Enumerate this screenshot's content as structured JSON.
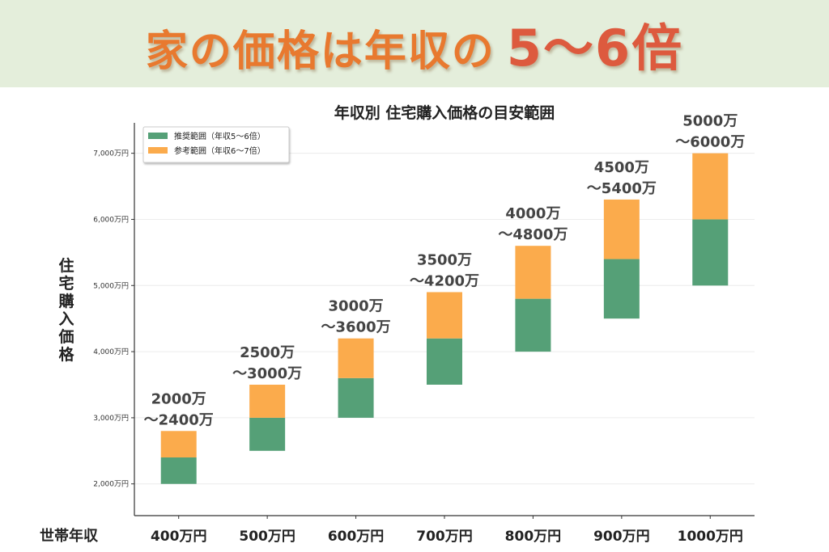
{
  "banner": {
    "text": "家の価格は年収の",
    "highlight": "5〜6倍"
  },
  "chart_data": {
    "type": "bar",
    "subtype": "floating-stacked",
    "title": "年収別 住宅購入価格の目安範囲",
    "xlabel": "世帯年収",
    "ylabel": "住宅購入価格",
    "categories": [
      "400万円",
      "500万円",
      "600万円",
      "700万円",
      "800万円",
      "900万円",
      "1000万円"
    ],
    "series": [
      {
        "name": "推奨範囲（年収5〜6倍）",
        "color": "#55a077",
        "low": [
          2000,
          2500,
          3000,
          3500,
          4000,
          4500,
          5000
        ],
        "high": [
          2400,
          3000,
          3600,
          4200,
          4800,
          5400,
          6000
        ]
      },
      {
        "name": "参考範囲（年収6〜7倍）",
        "color": "#fbab4c",
        "low": [
          2400,
          3000,
          3600,
          4200,
          4800,
          5400,
          6000
        ],
        "high": [
          2800,
          3500,
          4200,
          4900,
          5600,
          6300,
          7000
        ]
      }
    ],
    "data_labels": [
      [
        "2000万",
        "〜2400万"
      ],
      [
        "2500万",
        "〜3000万"
      ],
      [
        "3000万",
        "〜3600万"
      ],
      [
        "3500万",
        "〜4200万"
      ],
      [
        "4000万",
        "〜4800万"
      ],
      [
        "4500万",
        "〜5400万"
      ],
      [
        "5000万",
        "〜6000万"
      ]
    ],
    "yticks": [
      2000,
      3000,
      4000,
      5000,
      6000,
      7000
    ],
    "ytick_labels": [
      "2,000万円",
      "3,000万円",
      "4,000万円",
      "5,000万円",
      "6,000万円",
      "7,000万円"
    ],
    "ylim": [
      1520,
      7460
    ],
    "grid": true,
    "legend_position": "top-left"
  }
}
